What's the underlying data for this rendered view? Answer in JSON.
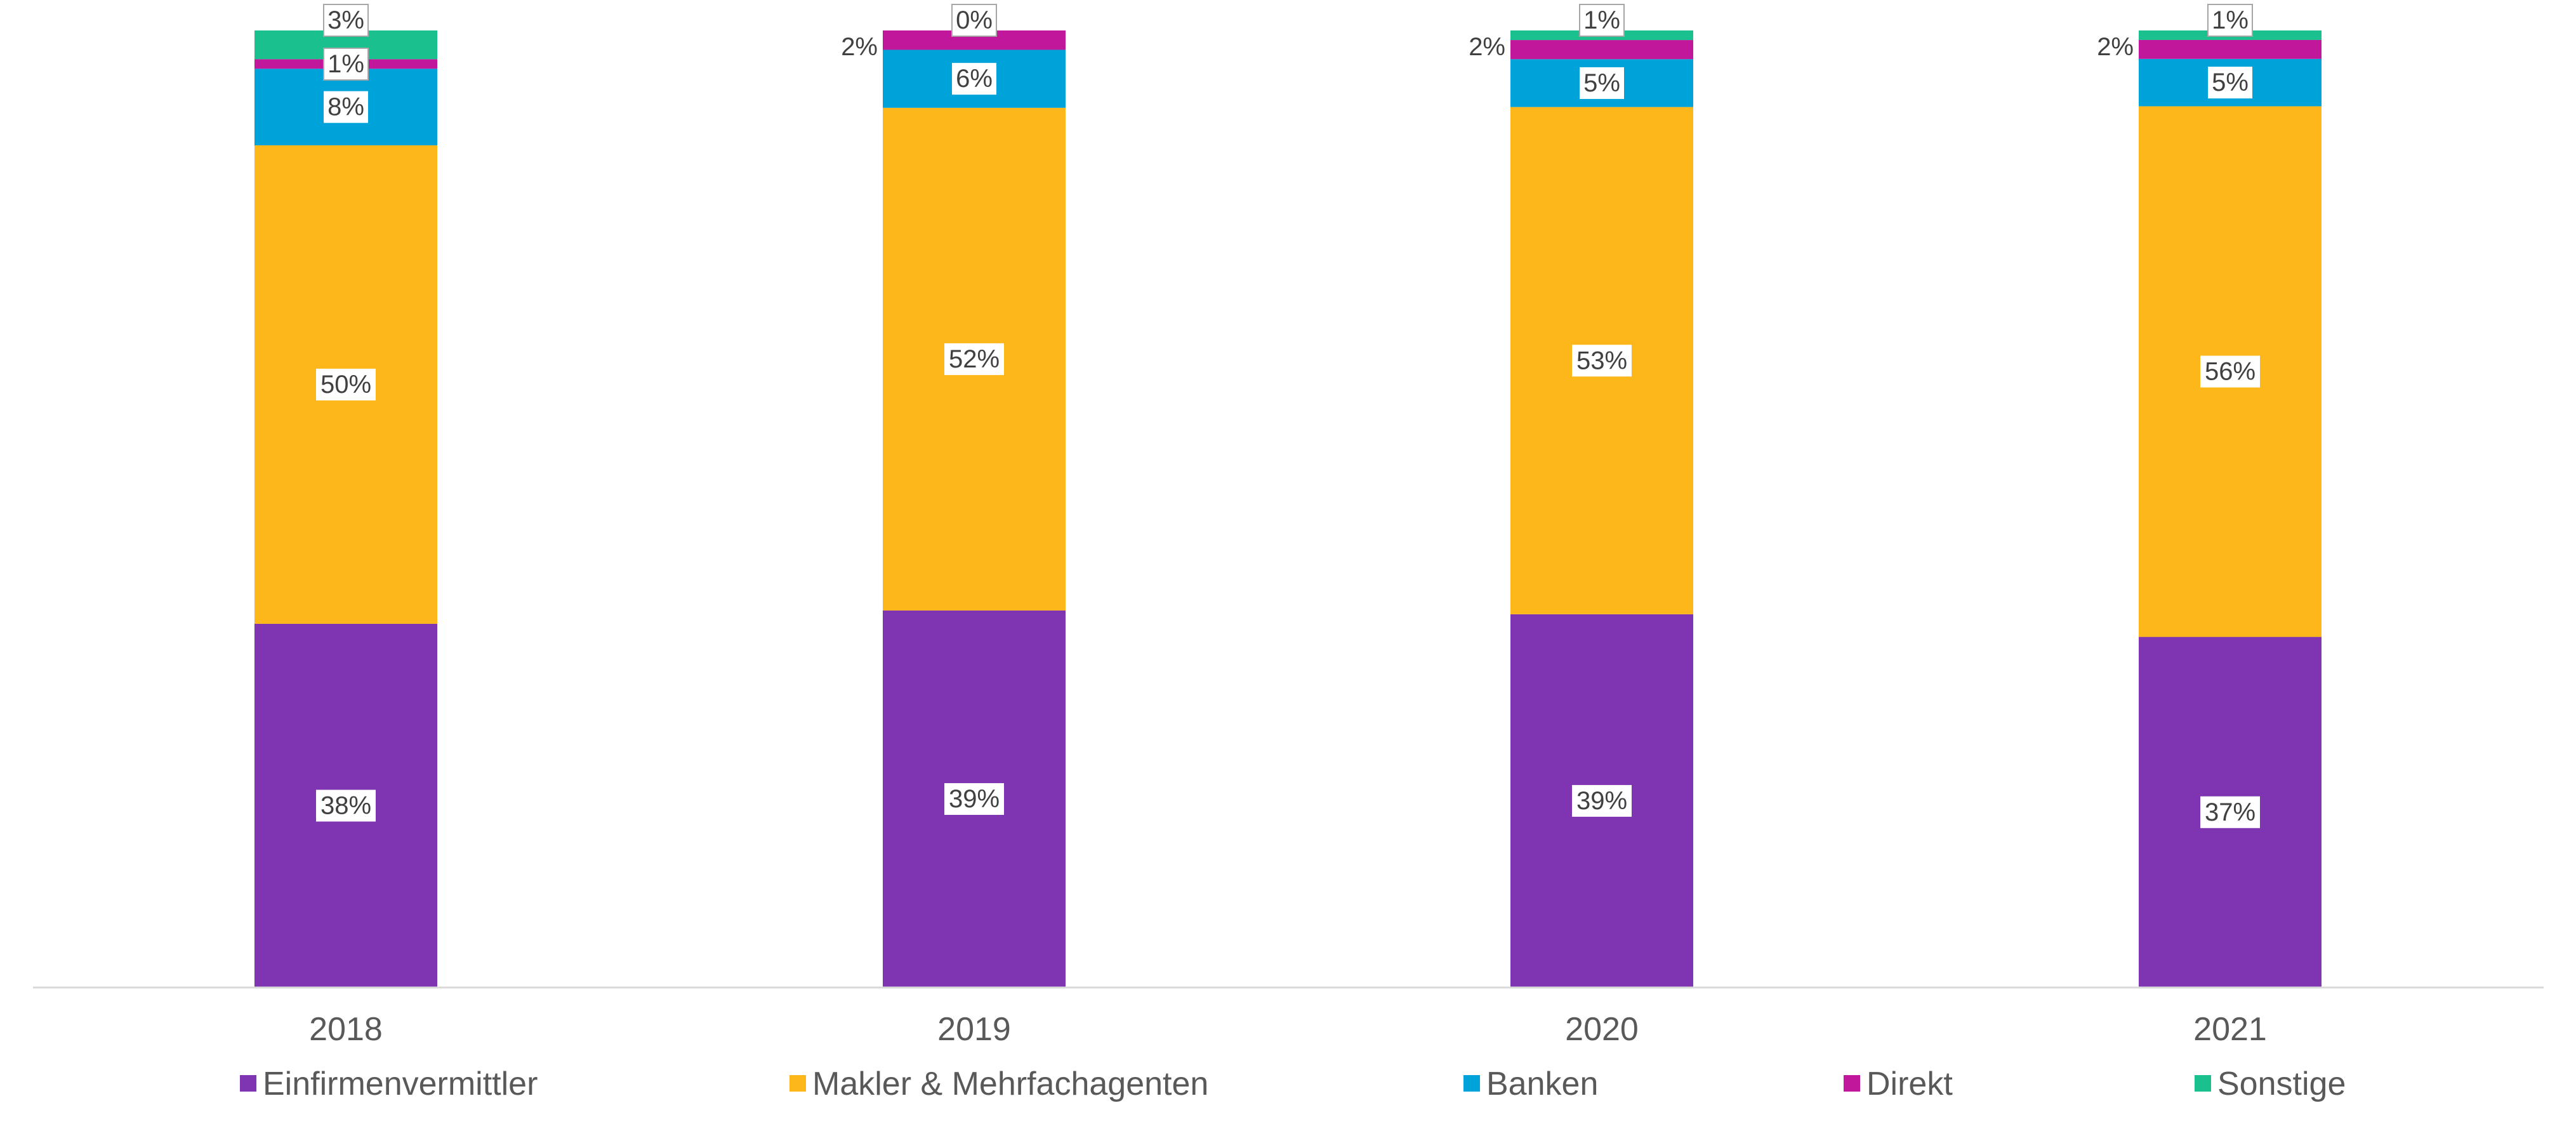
{
  "chart_data": {
    "type": "bar",
    "stacked": true,
    "percent_stacked": true,
    "categories": [
      "2018",
      "2019",
      "2020",
      "2021"
    ],
    "series": [
      {
        "name": "Einfirmenvermittler",
        "color": "#7F35B2",
        "values": [
          38,
          39,
          39,
          37
        ],
        "labels": [
          "38%",
          "39%",
          "39%",
          "37%"
        ]
      },
      {
        "name": "Makler & Mehrfachagenten",
        "color": "#FDB71A",
        "values": [
          50,
          52,
          53,
          56
        ],
        "labels": [
          "50%",
          "52%",
          "53%",
          "56%"
        ]
      },
      {
        "name": "Banken",
        "color": "#00A3D9",
        "values": [
          8,
          6,
          5,
          5
        ],
        "labels": [
          "8%",
          "6%",
          "5%",
          "5%"
        ]
      },
      {
        "name": "Direkt",
        "color": "#C1179A",
        "values": [
          1,
          2,
          2,
          2
        ],
        "labels": [
          "1%",
          "2%",
          "2%",
          "2%"
        ]
      },
      {
        "name": "Sonstige",
        "color": "#1AC08E",
        "values": [
          3,
          0,
          1,
          1
        ],
        "labels": [
          "3%",
          "0%",
          "1%",
          "1%"
        ]
      }
    ],
    "ylim": [
      0,
      100
    ],
    "grid": false,
    "legend_position": "bottom"
  }
}
